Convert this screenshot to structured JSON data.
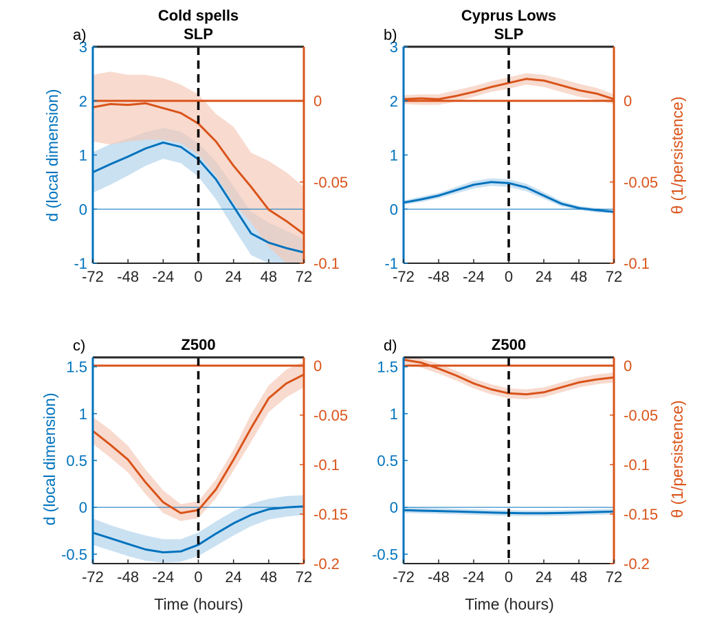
{
  "figure": {
    "left_ylabel": "d (local dimension)",
    "right_ylabel": "θ (1/persistence)",
    "xlabel": "Time (hours)",
    "colors": {
      "d": "#0072BD",
      "theta": "#D95319",
      "d_band": "#a7cde9",
      "theta_band": "#f4c6b3",
      "event_line": "#000000"
    }
  },
  "chart_data": [
    {
      "type": "line",
      "panel_label": "a)",
      "title_lines": [
        "Cold spells",
        "SLP"
      ],
      "x": [
        -72,
        -60,
        -48,
        -36,
        -24,
        -12,
        0,
        12,
        24,
        36,
        48,
        60,
        72
      ],
      "xlim": [
        -72,
        72
      ],
      "xticks": [
        -72,
        -48,
        -24,
        0,
        24,
        48,
        72
      ],
      "left_ylim": [
        -1,
        3
      ],
      "left_yticks": [
        -1,
        0,
        1,
        2,
        3
      ],
      "right_ylim": [
        -0.1,
        0.0333
      ],
      "right_yticks": [
        -0.1,
        -0.05,
        0
      ],
      "right_ticklabels": [
        "-0.1",
        "-0.05",
        "0"
      ],
      "series": [
        {
          "name": "d",
          "axis": "left",
          "values": [
            0.68,
            0.83,
            0.97,
            1.12,
            1.23,
            1.15,
            0.92,
            0.55,
            0.05,
            -0.45,
            -0.62,
            -0.72,
            -0.8
          ],
          "lower": [
            0.3,
            0.45,
            0.62,
            0.8,
            0.93,
            0.85,
            0.6,
            0.18,
            -0.35,
            -0.85,
            -1.0,
            -1.0,
            -1.0
          ],
          "upper": [
            1.05,
            1.2,
            1.3,
            1.42,
            1.5,
            1.43,
            1.22,
            0.88,
            0.42,
            -0.05,
            -0.25,
            -0.4,
            -0.55
          ]
        },
        {
          "name": "theta",
          "axis": "right",
          "values": [
            -0.004,
            -0.002,
            -0.0025,
            -0.0015,
            -0.0045,
            -0.0075,
            -0.014,
            -0.025,
            -0.04,
            -0.053,
            -0.067,
            -0.074,
            -0.082
          ],
          "lower": [
            -0.025,
            -0.027,
            -0.025,
            -0.024,
            -0.024,
            -0.026,
            -0.033,
            -0.046,
            -0.063,
            -0.075,
            -0.09,
            -0.1,
            -0.1
          ],
          "upper": [
            0.016,
            0.018,
            0.016,
            0.016,
            0.014,
            0.01,
            0.004,
            -0.008,
            -0.016,
            -0.032,
            -0.037,
            -0.044,
            -0.053
          ]
        }
      ],
      "reference_lines": {
        "left_zero": 0,
        "right_zero": 0,
        "event_time": 0
      }
    },
    {
      "type": "line",
      "panel_label": "b)",
      "title_lines": [
        "Cyprus Lows",
        "SLP"
      ],
      "x": [
        -72,
        -60,
        -48,
        -36,
        -24,
        -12,
        0,
        12,
        24,
        36,
        48,
        60,
        72
      ],
      "xlim": [
        -72,
        72
      ],
      "xticks": [
        -72,
        -48,
        -24,
        0,
        24,
        48,
        72
      ],
      "left_ylim": [
        -1,
        3
      ],
      "left_yticks": [
        -1,
        0,
        1,
        2,
        3
      ],
      "right_ylim": [
        -0.1,
        0.0333
      ],
      "right_yticks": [
        -0.1,
        -0.05,
        0
      ],
      "right_ticklabels": [
        "-0.1",
        "-0.05",
        "0"
      ],
      "series": [
        {
          "name": "d",
          "axis": "left",
          "values": [
            0.12,
            0.18,
            0.25,
            0.35,
            0.45,
            0.5,
            0.48,
            0.4,
            0.25,
            0.1,
            0.02,
            -0.02,
            -0.05
          ],
          "lower": [
            0.08,
            0.13,
            0.2,
            0.29,
            0.38,
            0.43,
            0.41,
            0.33,
            0.19,
            0.05,
            -0.02,
            -0.06,
            -0.08
          ],
          "upper": [
            0.16,
            0.23,
            0.3,
            0.41,
            0.52,
            0.57,
            0.55,
            0.47,
            0.31,
            0.15,
            0.06,
            0.02,
            -0.02
          ]
        },
        {
          "name": "theta",
          "axis": "right",
          "values": [
            0.001,
            0.0015,
            0.001,
            0.003,
            0.0055,
            0.0085,
            0.011,
            0.0135,
            0.0125,
            0.0095,
            0.0065,
            0.0045,
            0.001
          ],
          "lower": [
            -0.002,
            -0.0025,
            -0.0025,
            -0.0005,
            0.0025,
            0.0055,
            0.0075,
            0.01,
            0.0085,
            0.0055,
            0.0025,
            0.0005,
            -0.002
          ],
          "upper": [
            0.0035,
            0.004,
            0.004,
            0.0065,
            0.009,
            0.012,
            0.0145,
            0.017,
            0.016,
            0.0135,
            0.0105,
            0.008,
            0.004
          ]
        }
      ],
      "reference_lines": {
        "left_zero": 0,
        "right_zero": 0,
        "event_time": 0
      }
    },
    {
      "type": "line",
      "panel_label": "c)",
      "title_lines": [
        "Z500"
      ],
      "x": [
        -72,
        -60,
        -48,
        -36,
        -24,
        -12,
        0,
        12,
        24,
        36,
        48,
        60,
        72
      ],
      "xlim": [
        -72,
        72
      ],
      "xticks": [
        -72,
        -48,
        -24,
        0,
        24,
        48,
        72
      ],
      "left_ylim": [
        -0.6,
        1.6
      ],
      "left_yticks": [
        -0.5,
        0,
        0.5,
        1,
        1.5
      ],
      "right_ylim": [
        -0.2,
        0.0083
      ],
      "right_yticks": [
        -0.2,
        -0.15,
        -0.1,
        -0.05,
        0
      ],
      "right_ticklabels": [
        "-0.2",
        "-0.15",
        "-0.1",
        "-0.05",
        "0"
      ],
      "series": [
        {
          "name": "d",
          "axis": "left",
          "values": [
            -0.27,
            -0.33,
            -0.39,
            -0.45,
            -0.48,
            -0.47,
            -0.4,
            -0.28,
            -0.17,
            -0.08,
            -0.02,
            0.0,
            0.01
          ],
          "lower": [
            -0.4,
            -0.46,
            -0.52,
            -0.57,
            -0.59,
            -0.58,
            -0.52,
            -0.41,
            -0.3,
            -0.2,
            -0.13,
            -0.1,
            -0.08
          ],
          "upper": [
            -0.12,
            -0.19,
            -0.25,
            -0.3,
            -0.34,
            -0.34,
            -0.27,
            -0.15,
            -0.04,
            0.04,
            0.09,
            0.12,
            0.13
          ]
        },
        {
          "name": "theta",
          "axis": "right",
          "values": [
            -0.066,
            -0.08,
            -0.095,
            -0.118,
            -0.138,
            -0.149,
            -0.146,
            -0.125,
            -0.095,
            -0.063,
            -0.033,
            -0.018,
            -0.009
          ],
          "lower": [
            -0.079,
            -0.093,
            -0.108,
            -0.13,
            -0.149,
            -0.157,
            -0.154,
            -0.134,
            -0.106,
            -0.077,
            -0.047,
            -0.032,
            -0.022
          ],
          "upper": [
            -0.052,
            -0.065,
            -0.081,
            -0.105,
            -0.126,
            -0.14,
            -0.137,
            -0.115,
            -0.085,
            -0.049,
            -0.02,
            -0.004,
            0.004
          ]
        }
      ],
      "reference_lines": {
        "left_zero": 0,
        "right_zero": 0,
        "event_time": 0
      }
    },
    {
      "type": "line",
      "panel_label": "d)",
      "title_lines": [
        "Z500"
      ],
      "x": [
        -72,
        -60,
        -48,
        -36,
        -24,
        -12,
        0,
        12,
        24,
        36,
        48,
        60,
        72
      ],
      "xlim": [
        -72,
        72
      ],
      "xticks": [
        -72,
        -48,
        -24,
        0,
        24,
        48,
        72
      ],
      "left_ylim": [
        -0.6,
        1.6
      ],
      "left_yticks": [
        -0.5,
        0,
        0.5,
        1,
        1.5
      ],
      "right_ylim": [
        -0.2,
        0.0083
      ],
      "right_yticks": [
        -0.2,
        -0.15,
        -0.1,
        -0.05,
        0
      ],
      "right_ticklabels": [
        "-0.2",
        "-0.15",
        "-0.1",
        "-0.05",
        "0"
      ],
      "series": [
        {
          "name": "d",
          "axis": "left",
          "values": [
            -0.03,
            -0.035,
            -0.04,
            -0.045,
            -0.05,
            -0.055,
            -0.06,
            -0.063,
            -0.063,
            -0.06,
            -0.055,
            -0.05,
            -0.045
          ],
          "lower": [
            -0.06,
            -0.065,
            -0.07,
            -0.075,
            -0.08,
            -0.085,
            -0.09,
            -0.093,
            -0.093,
            -0.09,
            -0.085,
            -0.08,
            -0.075
          ],
          "upper": [
            0.0,
            -0.005,
            -0.01,
            -0.015,
            -0.02,
            -0.025,
            -0.03,
            -0.033,
            -0.033,
            -0.03,
            -0.025,
            -0.02,
            -0.015
          ]
        },
        {
          "name": "theta",
          "axis": "right",
          "values": [
            0.006,
            0.003,
            -0.003,
            -0.01,
            -0.018,
            -0.024,
            -0.028,
            -0.029,
            -0.027,
            -0.022,
            -0.017,
            -0.014,
            -0.012
          ],
          "lower": [
            0.002,
            -0.002,
            -0.008,
            -0.015,
            -0.023,
            -0.029,
            -0.033,
            -0.034,
            -0.032,
            -0.027,
            -0.022,
            -0.019,
            -0.017
          ],
          "upper": [
            0.009,
            0.007,
            0.002,
            -0.005,
            -0.013,
            -0.019,
            -0.023,
            -0.024,
            -0.022,
            -0.017,
            -0.012,
            -0.009,
            -0.007
          ]
        }
      ],
      "reference_lines": {
        "left_zero": 0,
        "right_zero": 0,
        "event_time": 0
      }
    }
  ]
}
